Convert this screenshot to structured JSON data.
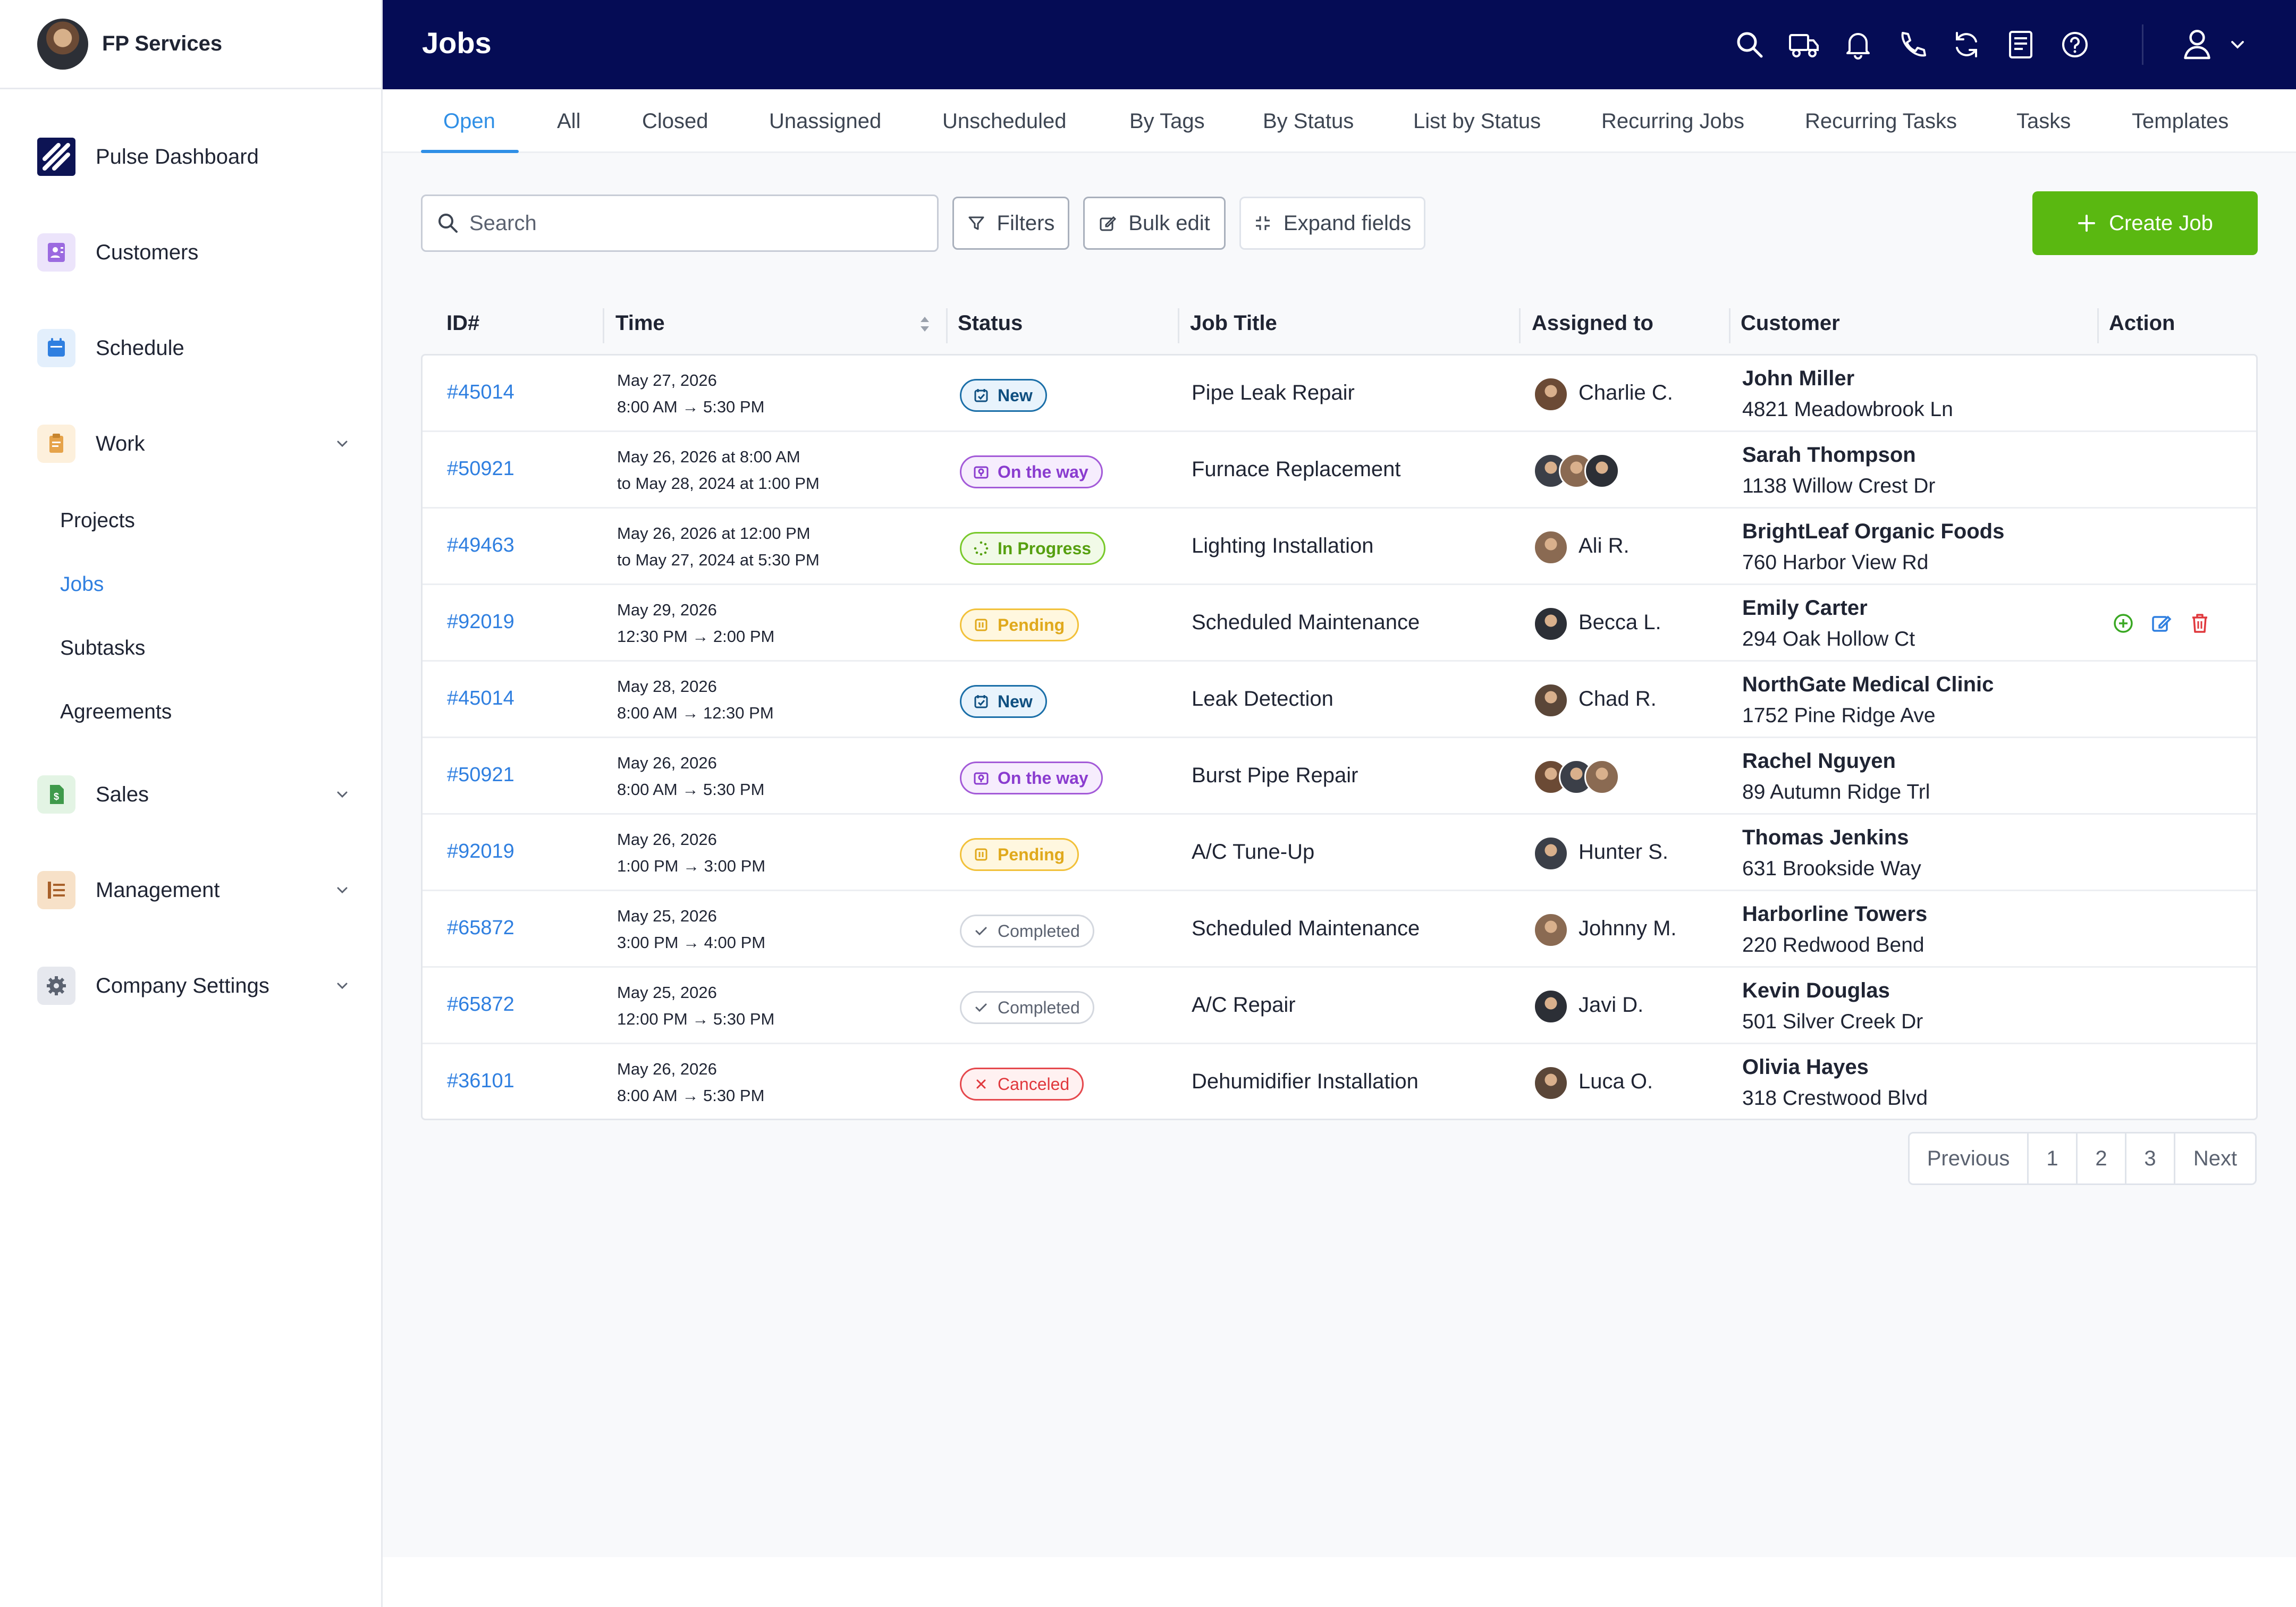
{
  "brand": {
    "name": "FP Services"
  },
  "sidebar": {
    "items": [
      {
        "label": "Pulse Dashboard",
        "icon": "pulse-logo-icon"
      },
      {
        "label": "Customers",
        "icon": "customers-icon"
      },
      {
        "label": "Schedule",
        "icon": "calendar-icon"
      },
      {
        "label": "Work",
        "icon": "clipboard-icon"
      },
      {
        "label": "Sales",
        "icon": "dollar-document-icon"
      },
      {
        "label": "Management",
        "icon": "list-icon"
      },
      {
        "label": "Company Settings",
        "icon": "gear-icon"
      }
    ],
    "work_sub": [
      "Projects",
      "Jobs",
      "Subtasks",
      "Agreements"
    ],
    "active_sub": "Jobs"
  },
  "header": {
    "title": "Jobs",
    "icons": [
      "search-icon",
      "truck-icon",
      "bell-icon",
      "phone-icon",
      "refresh-icon",
      "document-icon",
      "help-icon",
      "user-icon",
      "chevron-down-icon"
    ]
  },
  "tabs": [
    "Open",
    "All",
    "Closed",
    "Unassigned",
    "Unscheduled",
    "By Tags",
    "By Status",
    "List by Status",
    "Recurring Jobs",
    "Recurring Tasks",
    "Tasks",
    "Templates"
  ],
  "active_tab": "Open",
  "toolbar": {
    "search_placeholder": "Search",
    "filters": "Filters",
    "bulk_edit": "Bulk edit",
    "expand_fields": "Expand fields",
    "create_job": "Create Job"
  },
  "table": {
    "headers": [
      "ID#",
      "Time",
      "Status",
      "Job Title",
      "Assigned to",
      "Customer",
      "Action"
    ],
    "rows": [
      {
        "id": "#45014",
        "t1": "May 27, 2026",
        "t2": "8:00 AM → 5:30 PM",
        "status": "New",
        "kind": "new",
        "title": "Pipe Leak Repair",
        "avatars": 1,
        "assignee": "Charlie C.",
        "cust": "John Miller",
        "addr": "4821 Meadowbrook Ln"
      },
      {
        "id": "#50921",
        "t1": "May 26, 2026 at 8:00 AM",
        "t2": "to May 28, 2024 at 1:00 PM",
        "status": "On the way",
        "kind": "way",
        "title": "Furnace Replacement",
        "avatars": 3,
        "assignee": "",
        "cust": "Sarah Thompson",
        "addr": "1138 Willow Crest Dr"
      },
      {
        "id": "#49463",
        "t1": "May 26, 2026 at 12:00 PM",
        "t2": "to May 27, 2024 at 5:30 PM",
        "status": "In Progress",
        "kind": "prog",
        "title": "Lighting Installation",
        "avatars": 1,
        "assignee": "Ali R.",
        "cust": "BrightLeaf Organic Foods",
        "addr": "760 Harbor View Rd"
      },
      {
        "id": "#92019",
        "t1": "May 29, 2026",
        "t2": "12:30 PM → 2:00 PM",
        "status": "Pending",
        "kind": "pend",
        "title": "Scheduled Maintenance",
        "avatars": 1,
        "assignee": "Becca L.",
        "cust": "Emily Carter",
        "addr": "294 Oak Hollow Ct",
        "actions": true
      },
      {
        "id": "#45014",
        "t1": "May 28, 2026",
        "t2": "8:00 AM → 12:30 PM",
        "status": "New",
        "kind": "new",
        "title": "Leak Detection",
        "avatars": 1,
        "assignee": "Chad R.",
        "cust": "NorthGate Medical Clinic",
        "addr": "1752 Pine Ridge Ave"
      },
      {
        "id": "#50921",
        "t1": "May 26, 2026",
        "t2": "8:00 AM → 5:30 PM",
        "status": "On the way",
        "kind": "way",
        "title": "Burst Pipe Repair",
        "avatars": 3,
        "assignee": "",
        "cust": "Rachel Nguyen",
        "addr": "89 Autumn Ridge Trl"
      },
      {
        "id": "#92019",
        "t1": "May 26, 2026",
        "t2": "1:00 PM → 3:00 PM",
        "status": "Pending",
        "kind": "pend",
        "title": "A/C Tune-Up",
        "avatars": 1,
        "assignee": "Hunter S.",
        "cust": "Thomas Jenkins",
        "addr": "631 Brookside Way"
      },
      {
        "id": "#65872",
        "t1": "May 25, 2026",
        "t2": "3:00 PM → 4:00 PM",
        "status": "Completed",
        "kind": "comp",
        "title": "Scheduled Maintenance",
        "avatars": 1,
        "assignee": "Johnny M.",
        "cust": "Harborline Towers",
        "addr": "220 Redwood Bend"
      },
      {
        "id": "#65872",
        "t1": "May 25, 2026",
        "t2": "12:00 PM → 5:30 PM",
        "status": "Completed",
        "kind": "comp",
        "title": "A/C Repair",
        "avatars": 1,
        "assignee": "Javi D.",
        "cust": "Kevin Douglas",
        "addr": "501 Silver Creek Dr"
      },
      {
        "id": "#36101",
        "t1": "May 26, 2026",
        "t2": "8:00 AM → 5:30 PM",
        "status": "Canceled",
        "kind": "canc",
        "title": "Dehumidifier Installation",
        "avatars": 1,
        "assignee": "Luca O.",
        "cust": "Olivia Hayes",
        "addr": "318 Crestwood Blvd"
      }
    ]
  },
  "pagination": {
    "previous": "Previous",
    "pages": [
      "1",
      "2",
      "3"
    ],
    "next": "Next"
  },
  "colors": {
    "header_bg": "#050c55",
    "accent": "#2f8fe6",
    "create_button": "#5ab811"
  }
}
